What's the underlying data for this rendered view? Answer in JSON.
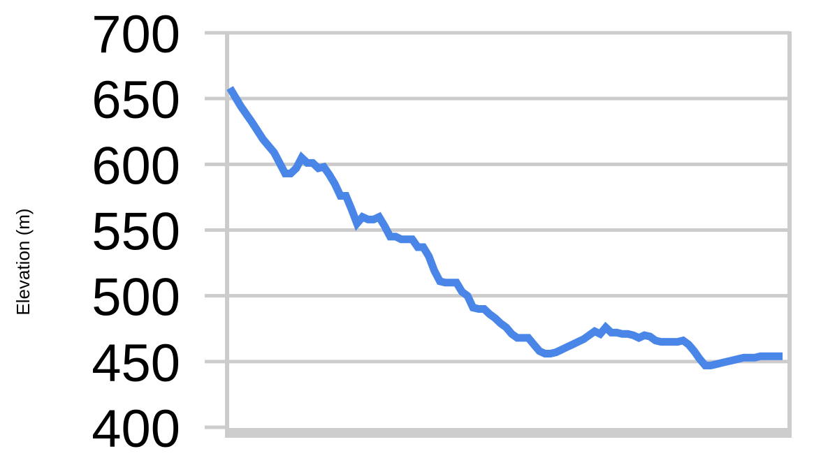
{
  "chart_data": {
    "type": "line",
    "title": "",
    "xlabel": "",
    "ylabel": "Elevation (m)",
    "ylim": [
      400,
      700
    ],
    "yticks": [
      700,
      650,
      600,
      550,
      500,
      450,
      400
    ],
    "ytick_labels": [
      "700",
      "650",
      "600",
      "550",
      "500",
      "450",
      "400"
    ],
    "xlim": [
      0,
      100
    ],
    "grid": true,
    "legend": "none",
    "series": [
      {
        "color": "#4a86e8",
        "x": [
          0,
          1,
          2,
          4,
          6,
          8,
          10,
          11,
          12,
          13,
          14,
          15,
          16,
          17,
          18,
          19,
          20,
          21,
          22,
          23,
          24,
          25,
          26,
          27,
          28,
          29,
          30,
          31,
          32,
          33,
          34,
          35,
          36,
          37,
          38,
          39,
          40,
          41,
          42,
          43,
          44,
          45,
          46,
          47,
          48,
          49,
          50,
          51,
          52,
          53,
          54,
          55,
          56,
          57,
          58,
          59,
          60,
          61,
          62,
          63,
          64,
          65,
          66,
          67,
          68,
          69,
          70,
          71,
          72,
          73,
          74,
          75,
          76,
          77,
          78,
          79,
          80,
          81,
          82,
          83,
          84,
          85,
          86,
          87,
          88,
          89,
          90,
          91,
          92,
          93,
          94,
          95,
          96,
          97,
          98,
          99,
          100
        ],
        "y": [
          658,
          651,
          644,
          632,
          619,
          609,
          593,
          593,
          597,
          605,
          601,
          601,
          597,
          598,
          592,
          585,
          576,
          576,
          566,
          555,
          560,
          558,
          558,
          560,
          553,
          545,
          545,
          543,
          543,
          543,
          537,
          537,
          530,
          519,
          511,
          510,
          510,
          510,
          503,
          500,
          491,
          490,
          490,
          486,
          483,
          479,
          476,
          471,
          468,
          468,
          468,
          463,
          458,
          456,
          456,
          457,
          459,
          461,
          463,
          465,
          467,
          470,
          473,
          471,
          476,
          472,
          472,
          471,
          471,
          470,
          468,
          470,
          469,
          466,
          465,
          465,
          465,
          465,
          466,
          463,
          458,
          452,
          447,
          447,
          448,
          449,
          450,
          451,
          452,
          453,
          453,
          453,
          454,
          454,
          454,
          454,
          454
        ],
        "comment": ""
      }
    ]
  }
}
